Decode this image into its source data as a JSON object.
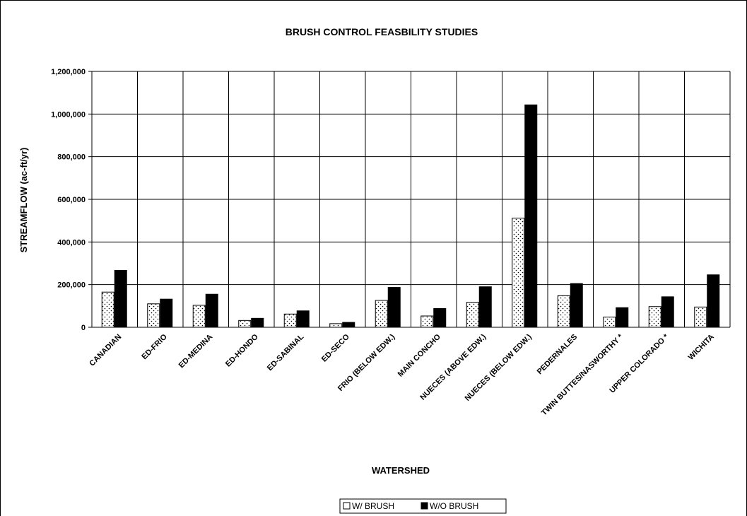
{
  "chart_data": {
    "type": "bar",
    "title": "BRUSH CONTROL FEASBILITY STUDIES",
    "xlabel": "WATERSHED",
    "ylabel": "STREAMFLOW (ac-ft/yr)",
    "ylim": [
      0,
      1200000
    ],
    "yticks": [
      0,
      200000,
      400000,
      600000,
      800000,
      1000000,
      1200000
    ],
    "ytick_labels": [
      "0",
      "200,000",
      "400,000",
      "600,000",
      "800,000",
      "1,000,000",
      "1,200,000"
    ],
    "grid": true,
    "legend_position": "bottom",
    "categories": [
      "CANADIAN",
      "ED-FRIO",
      "ED-MEDINA",
      "ED-HONDO",
      "ED-SABINAL",
      "ED-SECO",
      "FRIO (BELOW EDW.)",
      "MAIN CONCHO",
      "NUECES (ABOVE EDW.)",
      "NUECES (BELOW EDW.)",
      "PEDERNALES",
      "TWIN BUTTES/NASWORTHY *",
      "UPPER COLORADO *",
      "WICHITA"
    ],
    "series": [
      {
        "name": "W/ BRUSH",
        "color": "#ffffff",
        "pattern": "dotted",
        "values": [
          165000,
          110000,
          103000,
          32000,
          62000,
          17000,
          126000,
          53000,
          117000,
          512000,
          148000,
          48000,
          97000,
          95000
        ]
      },
      {
        "name": "W/O BRUSH",
        "color": "#000000",
        "pattern": "solid",
        "values": [
          267000,
          132000,
          155000,
          42000,
          77000,
          23000,
          187000,
          88000,
          190000,
          1043000,
          205000,
          92000,
          143000,
          246000
        ]
      }
    ]
  }
}
